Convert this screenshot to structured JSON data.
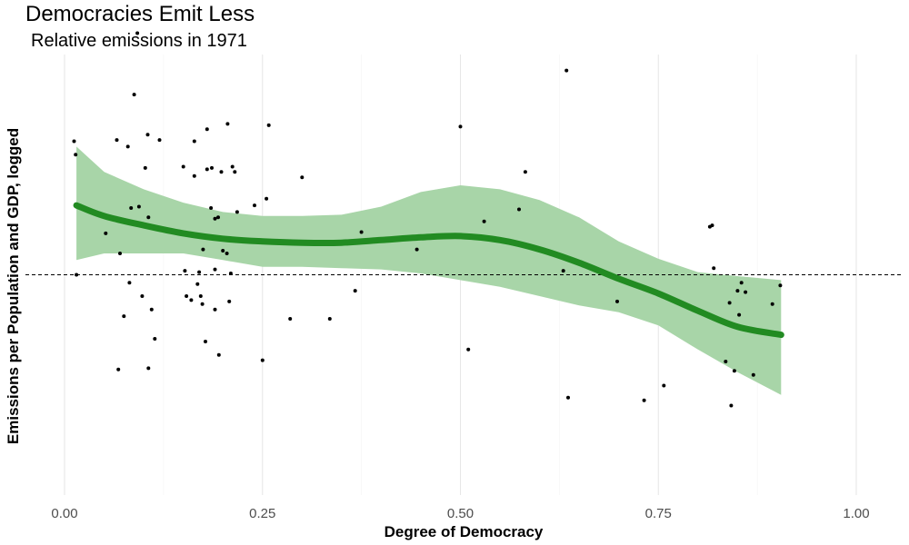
{
  "chart_data": {
    "type": "scatter",
    "title": "Democracies Emit Less",
    "subtitle": "Relative emissions in 1971",
    "xlabel": "Degree of Democracy",
    "ylabel": "Emissions per Population and GDP, logged",
    "xlim": [
      0,
      1.0
    ],
    "ylim": [
      -1.65,
      1.65
    ],
    "x_ticks": [
      "0.00",
      "0.25",
      "0.50",
      "0.75",
      "1.00"
    ],
    "x_tick_values": [
      0,
      0.25,
      0.5,
      0.75,
      1.0
    ],
    "y_ticks": [],
    "grid": "vertical",
    "reference_line": {
      "y": 0,
      "style": "dashed"
    },
    "colors": {
      "smooth_line": "#228b22",
      "confidence_band": "#a8d5a8",
      "points": "#000000",
      "reference_line": "#000000"
    },
    "points": [
      {
        "x": 0.012,
        "y": 1.0
      },
      {
        "x": 0.014,
        "y": 0.9
      },
      {
        "x": 0.015,
        "y": 0.0
      },
      {
        "x": 0.052,
        "y": 0.31
      },
      {
        "x": 0.066,
        "y": 1.01
      },
      {
        "x": 0.068,
        "y": -0.71
      },
      {
        "x": 0.07,
        "y": 0.16
      },
      {
        "x": 0.075,
        "y": -0.31
      },
      {
        "x": 0.08,
        "y": 0.96
      },
      {
        "x": 0.082,
        "y": -0.06
      },
      {
        "x": 0.084,
        "y": 0.5
      },
      {
        "x": 0.088,
        "y": 1.35
      },
      {
        "x": 0.092,
        "y": 1.81
      },
      {
        "x": 0.094,
        "y": 0.51
      },
      {
        "x": 0.098,
        "y": -0.16
      },
      {
        "x": 0.102,
        "y": 0.8
      },
      {
        "x": 0.105,
        "y": 1.05
      },
      {
        "x": 0.106,
        "y": 0.43
      },
      {
        "x": 0.106,
        "y": -0.7
      },
      {
        "x": 0.11,
        "y": -0.26
      },
      {
        "x": 0.114,
        "y": -0.48
      },
      {
        "x": 0.12,
        "y": 1.01
      },
      {
        "x": 0.15,
        "y": 0.81
      },
      {
        "x": 0.152,
        "y": 0.03
      },
      {
        "x": 0.154,
        "y": -0.16
      },
      {
        "x": 0.16,
        "y": -0.19
      },
      {
        "x": 0.164,
        "y": 0.74
      },
      {
        "x": 0.164,
        "y": 1.0
      },
      {
        "x": 0.168,
        "y": -0.07
      },
      {
        "x": 0.17,
        "y": 0.02
      },
      {
        "x": 0.172,
        "y": -0.16
      },
      {
        "x": 0.174,
        "y": -0.22
      },
      {
        "x": 0.175,
        "y": 0.19
      },
      {
        "x": 0.178,
        "y": -0.5
      },
      {
        "x": 0.18,
        "y": 0.79
      },
      {
        "x": 0.18,
        "y": 1.09
      },
      {
        "x": 0.185,
        "y": 0.5
      },
      {
        "x": 0.186,
        "y": 0.8
      },
      {
        "x": 0.19,
        "y": 0.42
      },
      {
        "x": 0.19,
        "y": 0.04
      },
      {
        "x": 0.19,
        "y": -0.26
      },
      {
        "x": 0.194,
        "y": 0.43
      },
      {
        "x": 0.195,
        "y": -0.6
      },
      {
        "x": 0.198,
        "y": 0.77
      },
      {
        "x": 0.2,
        "y": 0.18
      },
      {
        "x": 0.205,
        "y": 0.16
      },
      {
        "x": 0.206,
        "y": 1.13
      },
      {
        "x": 0.208,
        "y": -0.2
      },
      {
        "x": 0.21,
        "y": 0.01
      },
      {
        "x": 0.212,
        "y": 0.81
      },
      {
        "x": 0.215,
        "y": 0.77
      },
      {
        "x": 0.218,
        "y": 0.47
      },
      {
        "x": 0.24,
        "y": 0.52
      },
      {
        "x": 0.25,
        "y": -0.64
      },
      {
        "x": 0.255,
        "y": 0.57
      },
      {
        "x": 0.258,
        "y": 1.12
      },
      {
        "x": 0.285,
        "y": -0.33
      },
      {
        "x": 0.3,
        "y": 0.73
      },
      {
        "x": 0.335,
        "y": -0.33
      },
      {
        "x": 0.367,
        "y": -0.12
      },
      {
        "x": 0.375,
        "y": 0.32
      },
      {
        "x": 0.445,
        "y": 0.19
      },
      {
        "x": 0.5,
        "y": 1.11
      },
      {
        "x": 0.51,
        "y": -0.56
      },
      {
        "x": 0.53,
        "y": 0.4
      },
      {
        "x": 0.574,
        "y": 0.49
      },
      {
        "x": 0.582,
        "y": 0.77
      },
      {
        "x": 0.63,
        "y": 0.03
      },
      {
        "x": 0.634,
        "y": 1.53
      },
      {
        "x": 0.636,
        "y": -0.92
      },
      {
        "x": 0.698,
        "y": -0.2
      },
      {
        "x": 0.732,
        "y": -0.94
      },
      {
        "x": 0.757,
        "y": -0.83
      },
      {
        "x": 0.815,
        "y": 0.36
      },
      {
        "x": 0.818,
        "y": 0.37
      },
      {
        "x": 0.82,
        "y": 0.05
      },
      {
        "x": 0.835,
        "y": -0.65
      },
      {
        "x": 0.84,
        "y": -0.21
      },
      {
        "x": 0.842,
        "y": -0.98
      },
      {
        "x": 0.846,
        "y": -0.72
      },
      {
        "x": 0.85,
        "y": -0.12
      },
      {
        "x": 0.852,
        "y": -0.3
      },
      {
        "x": 0.855,
        "y": -0.06
      },
      {
        "x": 0.86,
        "y": -0.13
      },
      {
        "x": 0.87,
        "y": -0.75
      },
      {
        "x": 0.894,
        "y": -0.22
      },
      {
        "x": 0.904,
        "y": -0.08
      }
    ],
    "smooth_fit": {
      "x": [
        0.015,
        0.05,
        0.1,
        0.15,
        0.2,
        0.25,
        0.3,
        0.35,
        0.4,
        0.45,
        0.5,
        0.55,
        0.6,
        0.65,
        0.7,
        0.75,
        0.8,
        0.85,
        0.905
      ],
      "y": [
        0.52,
        0.44,
        0.37,
        0.31,
        0.27,
        0.25,
        0.24,
        0.24,
        0.26,
        0.28,
        0.29,
        0.26,
        0.19,
        0.09,
        -0.03,
        -0.14,
        -0.27,
        -0.39,
        -0.45
      ],
      "upper": [
        0.96,
        0.77,
        0.64,
        0.54,
        0.47,
        0.44,
        0.44,
        0.45,
        0.51,
        0.62,
        0.67,
        0.64,
        0.56,
        0.43,
        0.25,
        0.12,
        0.02,
        -0.01,
        -0.04
      ],
      "lower": [
        0.11,
        0.16,
        0.16,
        0.16,
        0.11,
        0.06,
        0.06,
        0.05,
        0.04,
        0.01,
        -0.04,
        -0.09,
        -0.16,
        -0.23,
        -0.28,
        -0.38,
        -0.56,
        -0.73,
        -0.9
      ]
    }
  }
}
